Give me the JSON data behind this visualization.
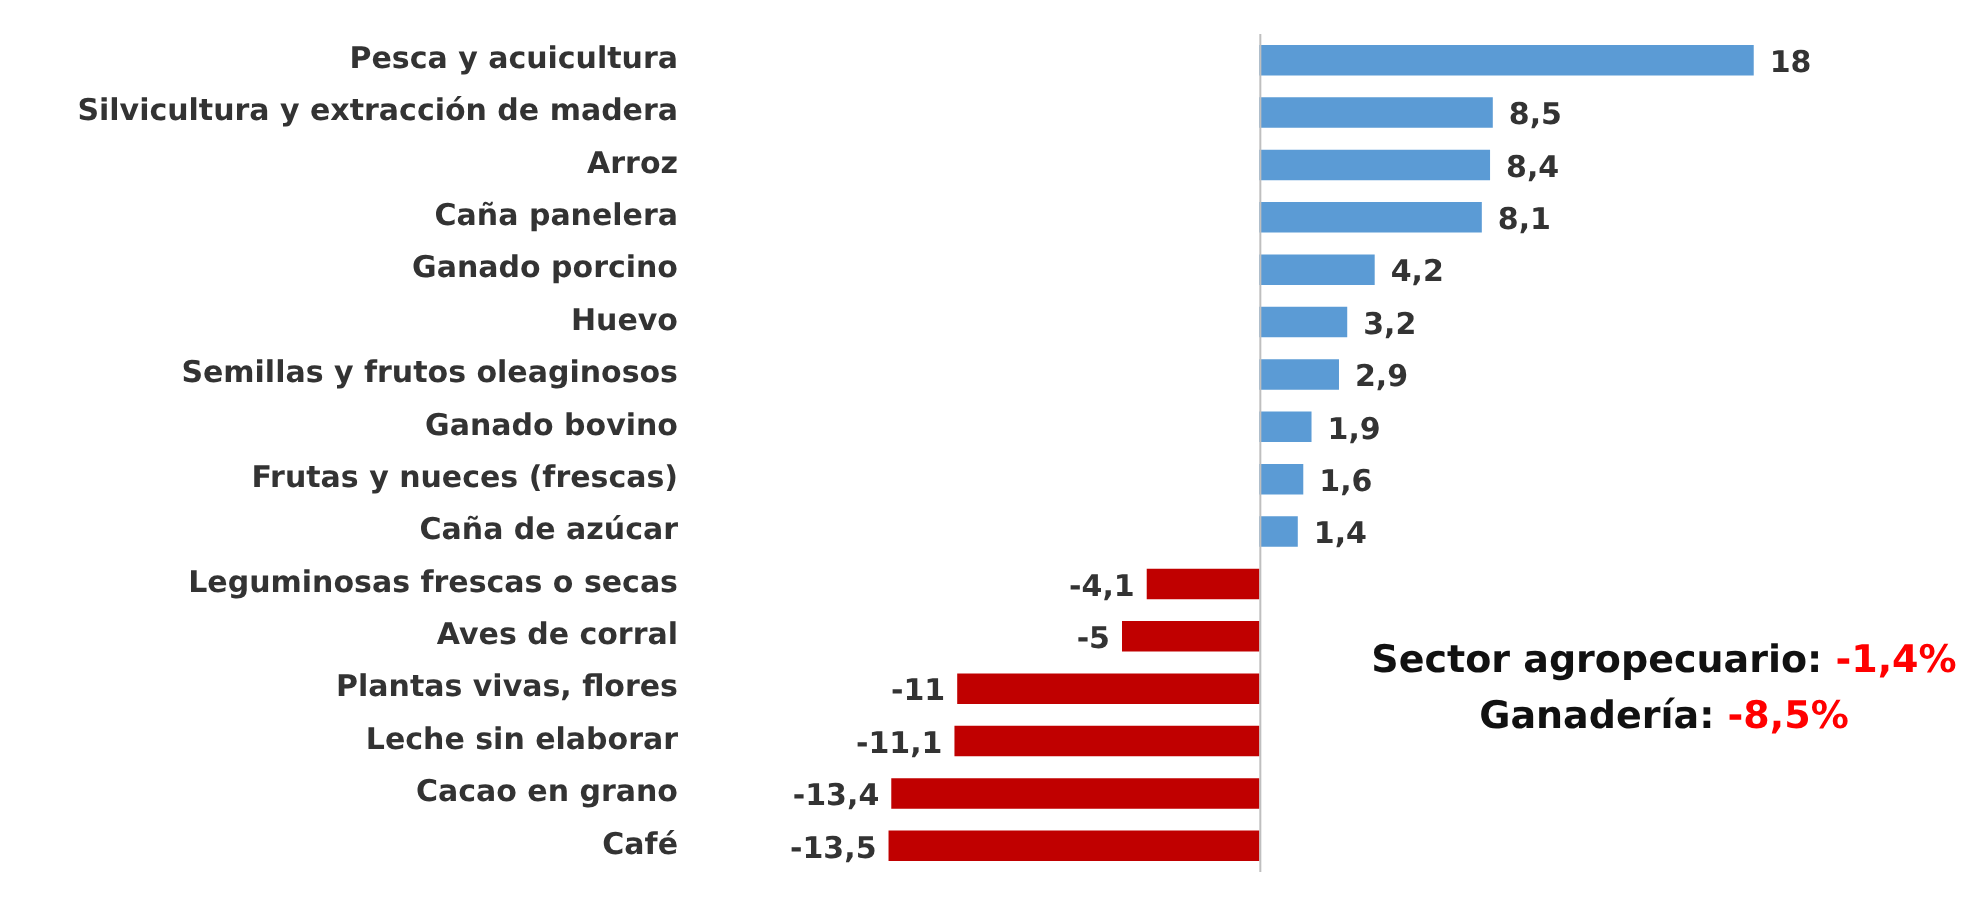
{
  "chart_data": {
    "type": "bar",
    "orientation": "horizontal",
    "categories": [
      "Pesca y acuicultura",
      "Silvicultura y extracción de madera",
      "Arroz",
      "Caña panelera",
      "Ganado porcino",
      "Huevo",
      "Semillas y frutos oleaginosos",
      "Ganado bovino",
      "Frutas y nueces (frescas)",
      "Caña de azúcar",
      "Leguminosas frescas o secas",
      "Aves de corral",
      "Plantas vivas, flores",
      "Leche sin elaborar",
      "Cacao en grano",
      "Café"
    ],
    "values": [
      18,
      8.5,
      8.4,
      8.1,
      4.2,
      3.2,
      2.9,
      1.9,
      1.6,
      1.4,
      -4.1,
      -5,
      -11,
      -11.1,
      -13.4,
      -13.5
    ],
    "value_labels": [
      "18",
      "8,5",
      "8,4",
      "8,1",
      "4,2",
      "3,2",
      "2,9",
      "1,9",
      "1,6",
      "1,4",
      "-4,1",
      "-5",
      "-11",
      "-11,1",
      "-13,4",
      "-13,5"
    ],
    "colors": [
      "#5b9bd5",
      "#5b9bd5",
      "#5b9bd5",
      "#5b9bd5",
      "#5b9bd5",
      "#5b9bd5",
      "#5b9bd5",
      "#5b9bd5",
      "#5b9bd5",
      "#5b9bd5",
      "#c00000",
      "#c00000",
      "#c00000",
      "#c00000",
      "#c00000",
      "#c00000"
    ],
    "tick_labels": "y",
    "grid": false,
    "legend": false,
    "annotations": [
      "Sector agropecuario: -1,4%",
      "Ganadería: -8,5%"
    ]
  }
}
